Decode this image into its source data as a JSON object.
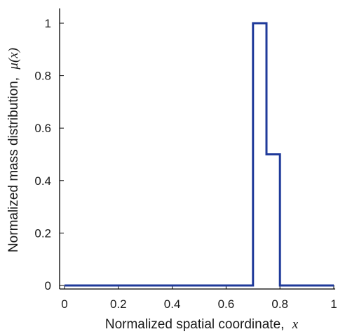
{
  "chart_data": {
    "type": "line",
    "title": "",
    "xlabel": "Normalized spatial coordinate,",
    "xlabel_var": "x",
    "ylabel": "Normalized mass distribution,",
    "ylabel_var": "μ(x)",
    "xlim": [
      0,
      1
    ],
    "ylim": [
      0,
      1
    ],
    "x_ticks": [
      0,
      0.2,
      0.4,
      0.6,
      0.8,
      1
    ],
    "x_tick_labels": [
      "0",
      "0.2",
      "0.4",
      "0.6",
      "0.8",
      "1"
    ],
    "y_ticks": [
      0,
      0.2,
      0.4,
      0.6,
      0.8,
      1
    ],
    "y_tick_labels": [
      "0",
      "0.2",
      "0.4",
      "0.6",
      "0.8",
      "1"
    ],
    "grid": false,
    "series": [
      {
        "color": "#1f3a9a",
        "x": [
          0,
          0.7,
          0.7,
          0.75,
          0.75,
          0.8,
          0.8,
          1
        ],
        "y": [
          0,
          0,
          1,
          1,
          0.5,
          0.5,
          0,
          0
        ]
      }
    ]
  }
}
